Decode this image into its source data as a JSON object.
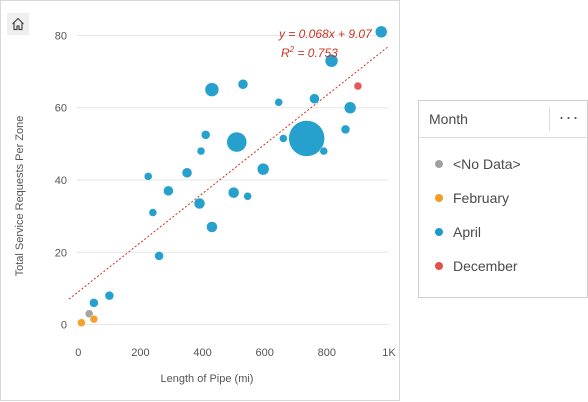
{
  "chart_data": {
    "type": "scatter",
    "xlabel": "Length of Pipe (mi)",
    "ylabel": "Total Service Requests Per Zone",
    "xlim": [
      -30,
      1000
    ],
    "ylim": [
      -4,
      84
    ],
    "x_ticks": [
      0,
      200,
      400,
      600,
      800,
      1000
    ],
    "x_tick_labels": [
      "0",
      "200",
      "400",
      "600",
      "800",
      "1K"
    ],
    "y_ticks": [
      0,
      20,
      40,
      60,
      80
    ],
    "y_tick_labels": [
      "0",
      "20",
      "40",
      "60",
      "80"
    ],
    "grid": "horizontal",
    "legend_position": "right",
    "trendline": {
      "slope": 0.068,
      "intercept": 9.07,
      "equation_label": "y = 0.068x + 9.07",
      "r2_label_prefix": "R",
      "r2_label_sup": "2",
      "r2_label_value": " = 0.753",
      "color": "#cc3322"
    },
    "series": [
      {
        "name": "<No Data>",
        "color": "#a0a0a0",
        "points": [
          {
            "x": 35,
            "y": 3,
            "size": 4
          }
        ]
      },
      {
        "name": "February",
        "color": "#f39c23",
        "points": [
          {
            "x": 10,
            "y": 0.5,
            "size": 4
          },
          {
            "x": 50,
            "y": 1.5,
            "size": 4
          }
        ]
      },
      {
        "name": "April",
        "color": "#1a9bc9",
        "points": [
          {
            "x": 50,
            "y": 6,
            "size": 4.5
          },
          {
            "x": 100,
            "y": 8,
            "size": 4.5
          },
          {
            "x": 225,
            "y": 41,
            "size": 4
          },
          {
            "x": 240,
            "y": 31,
            "size": 4
          },
          {
            "x": 260,
            "y": 19,
            "size": 4.5
          },
          {
            "x": 290,
            "y": 37,
            "size": 5
          },
          {
            "x": 350,
            "y": 42,
            "size": 5
          },
          {
            "x": 390,
            "y": 33.5,
            "size": 5.5
          },
          {
            "x": 395,
            "y": 48,
            "size": 4
          },
          {
            "x": 410,
            "y": 52.5,
            "size": 4.5
          },
          {
            "x": 430,
            "y": 27,
            "size": 5.5
          },
          {
            "x": 430,
            "y": 65,
            "size": 7
          },
          {
            "x": 500,
            "y": 36.5,
            "size": 5.5
          },
          {
            "x": 510,
            "y": 50.5,
            "size": 10
          },
          {
            "x": 530,
            "y": 66.5,
            "size": 5
          },
          {
            "x": 545,
            "y": 35.5,
            "size": 4
          },
          {
            "x": 595,
            "y": 43,
            "size": 6
          },
          {
            "x": 645,
            "y": 61.5,
            "size": 4
          },
          {
            "x": 660,
            "y": 51.5,
            "size": 4
          },
          {
            "x": 735,
            "y": 51.5,
            "size": 18
          },
          {
            "x": 760,
            "y": 62.5,
            "size": 5
          },
          {
            "x": 790,
            "y": 48,
            "size": 4
          },
          {
            "x": 815,
            "y": 73,
            "size": 6.5
          },
          {
            "x": 860,
            "y": 54,
            "size": 4.5
          },
          {
            "x": 875,
            "y": 60,
            "size": 6
          },
          {
            "x": 975,
            "y": 81,
            "size": 6
          }
        ]
      },
      {
        "name": "December",
        "color": "#e1504a",
        "points": [
          {
            "x": 900,
            "y": 66,
            "size": 4
          }
        ]
      }
    ]
  },
  "legend": {
    "title": "Month",
    "more_icon": "ellipsis-icon",
    "items": [
      {
        "label": "<No Data>",
        "color": "#a0a0a0"
      },
      {
        "label": "February",
        "color": "#f39c23"
      },
      {
        "label": "April",
        "color": "#1a9bc9"
      },
      {
        "label": "December",
        "color": "#e1504a"
      }
    ]
  },
  "toolbar": {
    "home_icon": "home-icon"
  }
}
